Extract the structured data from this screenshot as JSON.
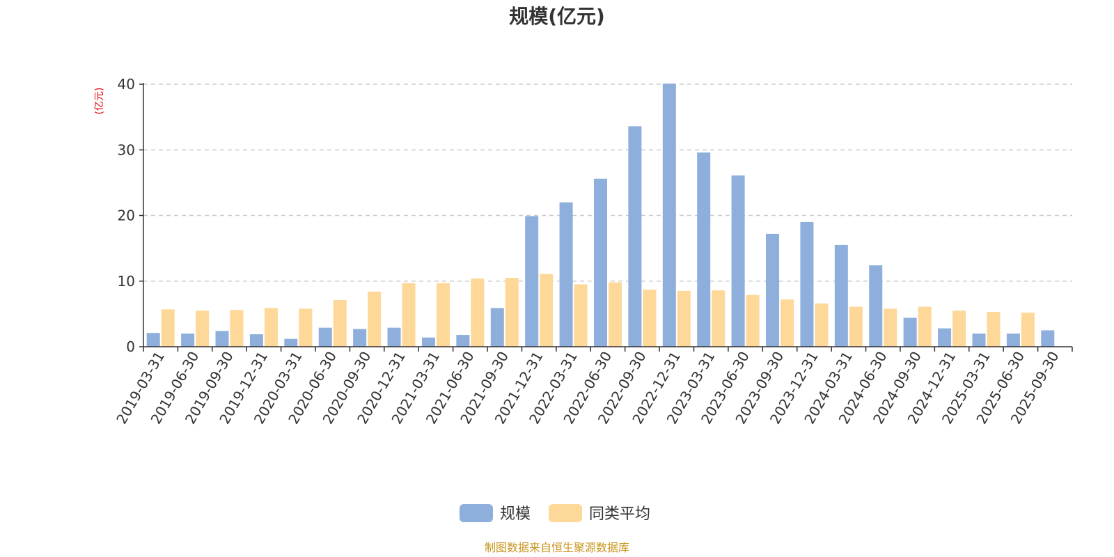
{
  "chart_data": {
    "type": "bar",
    "title": "规模(亿元)",
    "ylabel": "(亿元)",
    "xlabel": "",
    "ylim": [
      0,
      40
    ],
    "yticks": [
      0,
      10,
      20,
      30,
      40
    ],
    "grid": true,
    "legend_position": "bottom",
    "categories": [
      "2019-03-31",
      "2019-06-30",
      "2019-09-30",
      "2019-12-31",
      "2020-03-31",
      "2020-06-30",
      "2020-09-30",
      "2020-12-31",
      "2021-03-31",
      "2021-06-30",
      "2021-09-30",
      "2021-12-31",
      "2022-03-31",
      "2022-06-30",
      "2022-09-30",
      "2022-12-31",
      "2023-03-31",
      "2023-06-30",
      "2023-09-30",
      "2023-12-31",
      "2024-03-31",
      "2024-06-30",
      "2024-09-30",
      "2024-12-31",
      "2025-03-31",
      "2025-06-30",
      "2025-09-30"
    ],
    "series": [
      {
        "name": "规模",
        "color": "#8eaedb",
        "values": [
          2.1,
          2.0,
          2.4,
          1.9,
          1.2,
          2.9,
          2.7,
          2.9,
          1.4,
          1.8,
          5.9,
          19.9,
          22.0,
          25.6,
          33.6,
          40.1,
          29.6,
          26.1,
          17.2,
          19.0,
          15.5,
          12.4,
          4.4,
          2.8,
          2.0,
          2.0,
          2.5
        ]
      },
      {
        "name": "同类平均",
        "color": "#fdd898",
        "values": [
          5.7,
          5.5,
          5.6,
          5.9,
          5.8,
          7.1,
          8.4,
          9.7,
          9.7,
          10.4,
          10.5,
          11.1,
          9.5,
          9.8,
          8.7,
          8.5,
          8.6,
          7.9,
          7.2,
          6.6,
          6.1,
          5.8,
          6.1,
          5.5,
          5.3,
          5.2,
          null
        ]
      }
    ]
  },
  "source_note": "制图数据来自恒生聚源数据库",
  "colors": {
    "axis": "#333333",
    "grid": "#cccccc",
    "unit_label": "#e00000",
    "source_note": "#c8961e"
  }
}
